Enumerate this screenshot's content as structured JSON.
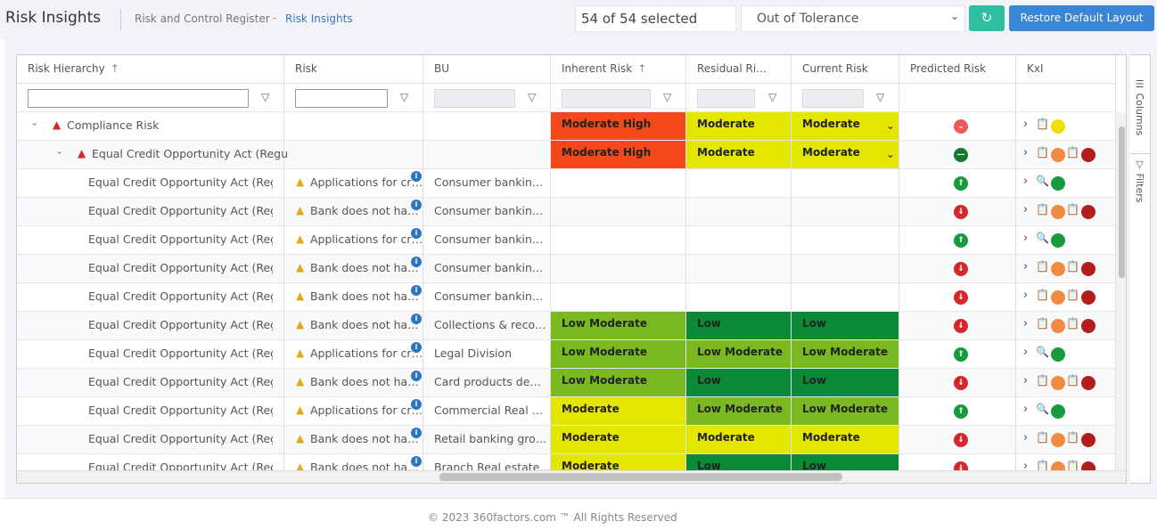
{
  "header": {
    "title": "Risk Insights",
    "breadcrumb": [
      "Risk and Control Register",
      "Risk Insights"
    ],
    "selection": "54 of 54 selected",
    "filter": "Out of Tolerance",
    "button": "Restore Default Layout"
  },
  "table": {
    "columns": [
      "Risk Hierarchy",
      "Risk",
      "BU",
      "Inherent Risk",
      "Residual Ri...",
      "Current Risk",
      "Predicted Risk",
      "KxI"
    ],
    "rows": [
      {
        "level": 0,
        "hierarchy": "Compliance Risk",
        "inherent": {
          "text": "Moderate High",
          "color": "#f4471a"
        },
        "residual": {
          "text": "Moderate",
          "color": "#e3e600"
        },
        "current": {
          "text": "Moderate",
          "color": "#e3e600"
        },
        "predicted": "down-light"
      },
      {
        "level": 1,
        "hierarchy": "Equal Credit Opportunity Act (Regu",
        "inherent": {
          "text": "Moderate High",
          "color": "#f4471a"
        },
        "residual": {
          "text": "Moderate",
          "color": "#e3e600"
        },
        "current": {
          "text": "Moderate",
          "color": "#e3e600"
        },
        "predicted": "steady"
      },
      {
        "level": 2,
        "hierarchy": "Equal Credit Opportunity Act (Regu",
        "risk": "Applications for cr…",
        "bu": "Consumer bankin…",
        "predicted": "up"
      },
      {
        "level": 2,
        "hierarchy": "Equal Credit Opportunity Act (Regu",
        "risk": "Bank does not ha…",
        "bu": "Consumer bankin…",
        "predicted": "down"
      },
      {
        "level": 2,
        "hierarchy": "Equal Credit Opportunity Act (Regu",
        "risk": "Applications for cr…",
        "bu": "Consumer bankin…",
        "predicted": "up"
      },
      {
        "level": 2,
        "hierarchy": "Equal Credit Opportunity Act (Regu",
        "risk": "Bank does not ha…",
        "bu": "Consumer bankin…",
        "predicted": "down"
      },
      {
        "level": 2,
        "hierarchy": "Equal Credit Opportunity Act (Regu",
        "risk": "Bank does not ha…",
        "bu": "Consumer bankin…",
        "predicted": "down"
      },
      {
        "level": 2,
        "hierarchy": "Equal Credit Opportunity Act (Regu",
        "risk": "Bank does not ha…",
        "bu": "Collections & reco…",
        "inherent": {
          "text": "Low Moderate",
          "color": "#7aba20"
        },
        "residual": {
          "text": "Low",
          "color": "#0a8a36"
        },
        "current": {
          "text": "Low",
          "color": "#0a8a36"
        },
        "predicted": "down"
      },
      {
        "level": 2,
        "hierarchy": "Equal Credit Opportunity Act (Regu",
        "risk": "Applications for cr…",
        "bu": "Legal Division",
        "inherent": {
          "text": "Low Moderate",
          "color": "#7aba20"
        },
        "residual": {
          "text": "Low Moderate",
          "color": "#7aba20"
        },
        "current": {
          "text": "Low Moderate",
          "color": "#7aba20"
        },
        "predicted": "up"
      },
      {
        "level": 2,
        "hierarchy": "Equal Credit Opportunity Act (Regu",
        "risk": "Bank does not ha…",
        "bu": "Card products de…",
        "inherent": {
          "text": "Low Moderate",
          "color": "#7aba20"
        },
        "residual": {
          "text": "Low",
          "color": "#0a8a36"
        },
        "current": {
          "text": "Low",
          "color": "#0a8a36"
        },
        "predicted": "down"
      },
      {
        "level": 2,
        "hierarchy": "Equal Credit Opportunity Act (Regu",
        "risk": "Applications for cr…",
        "bu": "Commercial Real …",
        "inherent": {
          "text": "Moderate",
          "color": "#e3e600"
        },
        "residual": {
          "text": "Low Moderate",
          "color": "#7aba20"
        },
        "current": {
          "text": "Low Moderate",
          "color": "#7aba20"
        },
        "predicted": "up"
      },
      {
        "level": 2,
        "hierarchy": "Equal Credit Opportunity Act (Regu",
        "risk": "Bank does not ha…",
        "bu": "Retail banking gro…",
        "inherent": {
          "text": "Moderate",
          "color": "#e3e600"
        },
        "residual": {
          "text": "Moderate",
          "color": "#e3e600"
        },
        "current": {
          "text": "Moderate",
          "color": "#e3e600"
        },
        "predicted": "down"
      },
      {
        "level": 2,
        "hierarchy": "Equal Credit Opportunity Act (Regu",
        "risk": "Bank does not ha…",
        "bu": "Branch Real estate…",
        "inherent": {
          "text": "Moderate",
          "color": "#e3e600"
        },
        "residual": {
          "text": "Low",
          "color": "#0a8a36"
        },
        "current": {
          "text": "Low",
          "color": "#0a8a36"
        },
        "predicted": "down"
      }
    ]
  },
  "side_panel": [
    "Columns",
    "Filters"
  ],
  "footer": "© 2023 360factors.com ™ All Rights Reserved"
}
